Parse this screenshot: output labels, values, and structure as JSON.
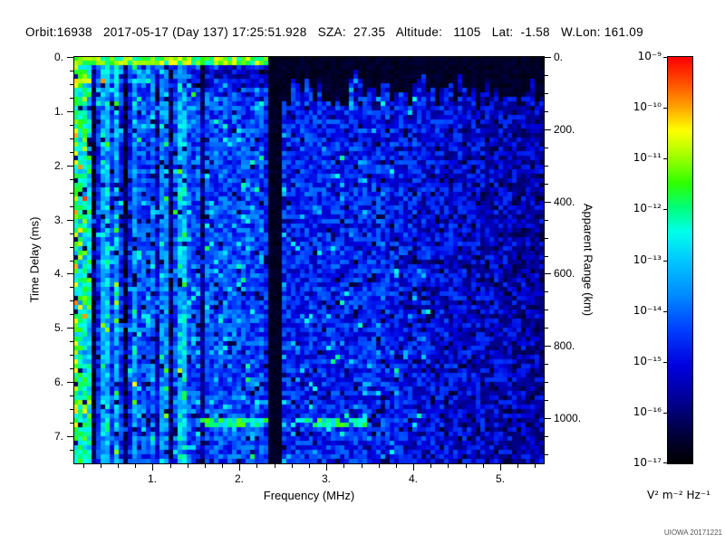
{
  "header": {
    "line": "Orbit:16938   2017-05-17 (Day 137) 17:25:51.928   SZA:  27.35   Altitude:   1105   Lat:  -1.58   W.Lon: 161.09",
    "orbit": "16938",
    "date": "2017-05-17",
    "day_of_year": "137",
    "time": "17:25:51.928",
    "sza": "27.35",
    "altitude": "1105",
    "lat": "-1.58",
    "w_lon": "161.09"
  },
  "chart_data": {
    "type": "heatmap",
    "xlabel": "Frequency (MHz)",
    "ylabel_left": "Time Delay (ms)",
    "ylabel_right": "Apparent Range (km)",
    "x_range_mhz": [
      0.1,
      5.5
    ],
    "x_ticks": [
      1,
      2,
      3,
      4,
      5
    ],
    "x_tick_labels": [
      "1.",
      "2.",
      "3.",
      "4.",
      "5."
    ],
    "y_range_ms": [
      0,
      7.5
    ],
    "y_ticks": [
      0,
      1,
      2,
      3,
      4,
      5,
      6,
      7
    ],
    "y_tick_labels": [
      "0.",
      "1.",
      "2.",
      "3.",
      "4.",
      "5.",
      "6.",
      "7."
    ],
    "right_axis_range_km": [
      0,
      1125
    ],
    "right_ticks_km": [
      0,
      200,
      400,
      600,
      800,
      1000
    ],
    "right_tick_labels": [
      "0.",
      "200.",
      "400.",
      "600.",
      "800.",
      "1000."
    ],
    "colorbar": {
      "scale": "log",
      "min": "1e-17",
      "max": "1e-9",
      "tick_labels": [
        "10⁻⁹",
        "10⁻¹⁰",
        "10⁻¹¹",
        "10⁻¹²",
        "10⁻¹³",
        "10⁻¹⁴",
        "10⁻¹⁵",
        "10⁻¹⁶",
        "10⁻¹⁷"
      ],
      "units": "V² m⁻² Hz⁻¹"
    },
    "colormap": {
      "stops": [
        [
          0.0,
          "#000002"
        ],
        [
          0.07,
          "#00003c"
        ],
        [
          0.15,
          "#00008e"
        ],
        [
          0.24,
          "#0000e0"
        ],
        [
          0.33,
          "#0040ff"
        ],
        [
          0.42,
          "#0090ff"
        ],
        [
          0.5,
          "#00c8ff"
        ],
        [
          0.57,
          "#00ffec"
        ],
        [
          0.63,
          "#00ff78"
        ],
        [
          0.69,
          "#30ff00"
        ],
        [
          0.76,
          "#a8ff00"
        ],
        [
          0.82,
          "#ffff00"
        ],
        [
          0.88,
          "#ffa000"
        ],
        [
          0.94,
          "#ff4c00"
        ],
        [
          1.0,
          "#ff0000"
        ]
      ]
    },
    "features": {
      "surface_reflection_band": {
        "delay_ms": [
          0.0,
          0.16
        ],
        "freq_mhz": [
          0.1,
          2.33
        ]
      },
      "rfi_blanked_band_mhz": [
        2.34,
        2.47
      ],
      "dark_band_mhz": [
        0.31,
        0.38
      ],
      "ionospheric_echo_trace": {
        "delay_ms": [
          6.68,
          6.82
        ],
        "freq_mhz": [
          1.55,
          3.5
        ]
      },
      "black_region_top_right": {
        "delay_ms": [
          0.0,
          0.6
        ],
        "freq_mhz": [
          2.47,
          5.5
        ]
      },
      "noise_description": "blue speckle noise floor; bright green/cyan vertical striations below 1.7 MHz; progressively darker with black dropouts above 4 MHz"
    }
  },
  "footer": {
    "watermark": "UIOWA 20171221"
  }
}
